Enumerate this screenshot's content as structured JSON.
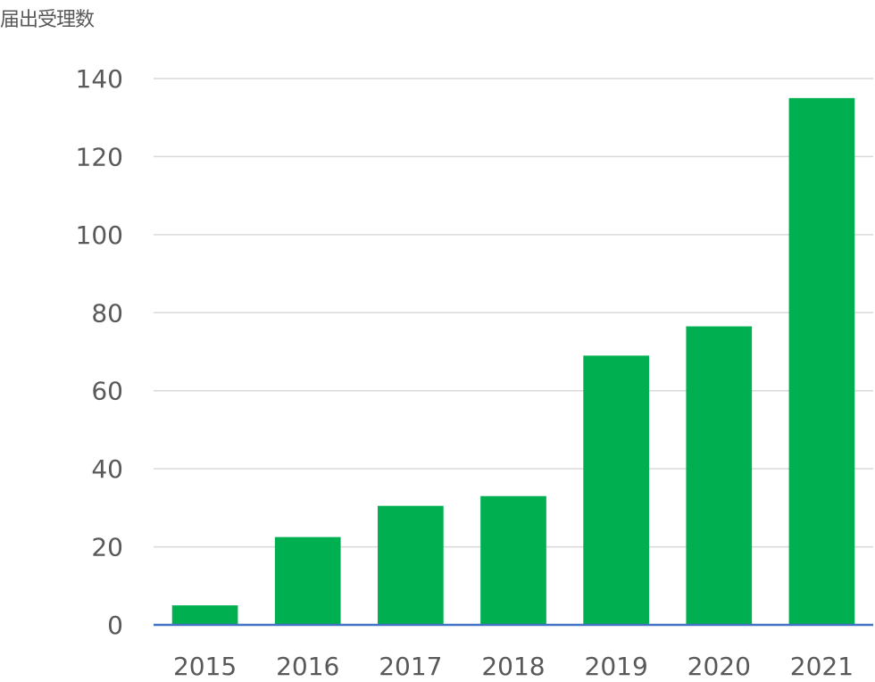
{
  "chart_data": {
    "type": "bar",
    "ylabel": "届出受理数",
    "categories": [
      "2015",
      "2016",
      "2017",
      "2018",
      "2019",
      "2020",
      "2021"
    ],
    "values": [
      5,
      22.5,
      30.5,
      33,
      69,
      76.5,
      135
    ],
    "ylim": [
      0,
      140
    ],
    "yticks": [
      0,
      20,
      40,
      60,
      80,
      100,
      120,
      140
    ],
    "grid": true,
    "legend": "none",
    "colors": {
      "bar": "#00b050",
      "grid": "#d9d9d9",
      "axis": "#4472c4",
      "text": "#595959"
    }
  }
}
